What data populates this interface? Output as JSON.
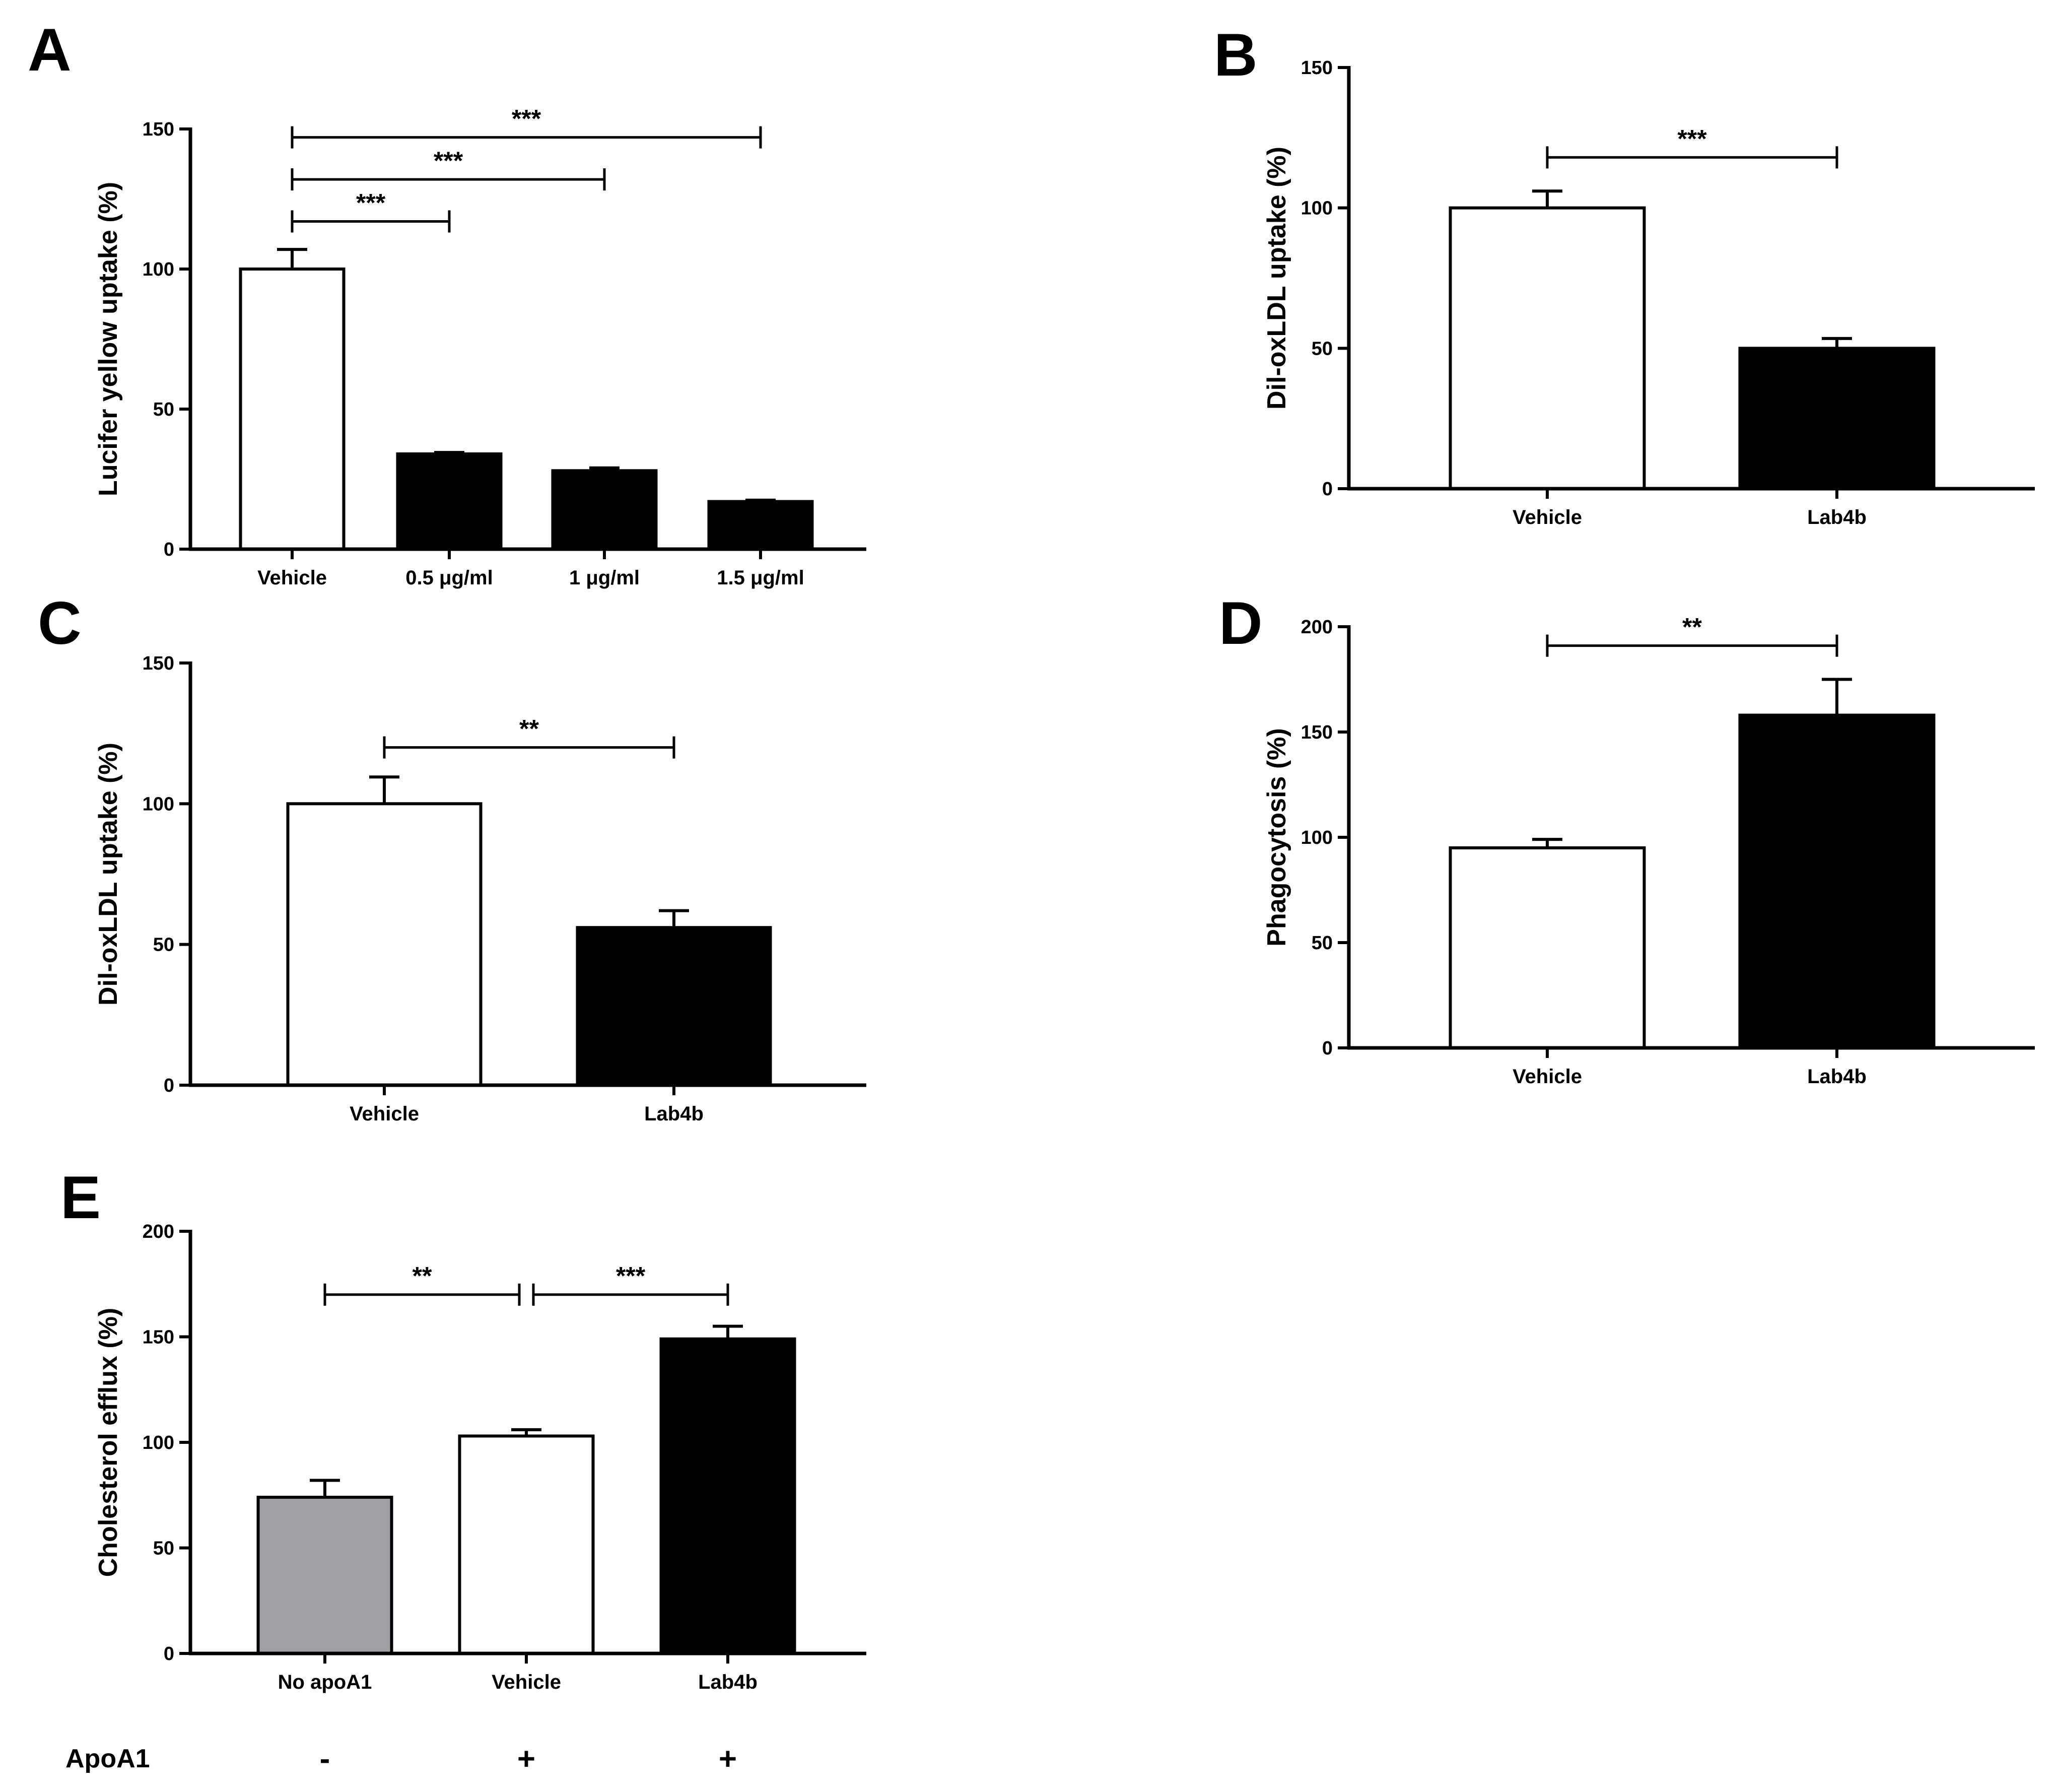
{
  "figure": {
    "colors": {
      "axis": "#000000",
      "white_bar": "#ffffff",
      "black_bar": "#000000",
      "gray_bar": "#a0a0a4"
    },
    "footer": {
      "label": "ApoA1",
      "signs": [
        "-",
        "+",
        "+"
      ]
    }
  },
  "chart_data": [
    {
      "panel": "A",
      "type": "bar",
      "ylabel": "Lucifer yellow uptake (%)",
      "xlabel": "",
      "ylim": [
        0,
        150
      ],
      "yticks": [
        0,
        50,
        100,
        150
      ],
      "categories": [
        "Vehicle",
        "0.5 μg/ml",
        "1 μg/ml",
        "1.5 μg/ml"
      ],
      "values": [
        100,
        34,
        28,
        17
      ],
      "errors": [
        7,
        0.5,
        1,
        0.5
      ],
      "fills": [
        "white",
        "black",
        "black",
        "black"
      ],
      "comparisons": [
        {
          "from": 0,
          "to": 1,
          "label": "***",
          "level": 117
        },
        {
          "from": 0,
          "to": 2,
          "label": "***",
          "level": 132
        },
        {
          "from": 0,
          "to": 3,
          "label": "***",
          "level": 147
        }
      ]
    },
    {
      "panel": "B",
      "type": "bar",
      "ylabel": "Dil-oxLDL uptake (%)",
      "xlabel": "",
      "ylim": [
        0,
        150
      ],
      "yticks": [
        0,
        50,
        100,
        150
      ],
      "categories": [
        "Vehicle",
        "Lab4b"
      ],
      "values": [
        100,
        50
      ],
      "errors": [
        6,
        3.5
      ],
      "fills": [
        "white",
        "black"
      ],
      "comparisons": [
        {
          "from": 0,
          "to": 1,
          "label": "***",
          "level": 118
        }
      ]
    },
    {
      "panel": "C",
      "type": "bar",
      "ylabel": "Dil-oxLDL uptake (%)",
      "xlabel": "",
      "ylim": [
        0,
        150
      ],
      "yticks": [
        0,
        50,
        100,
        150
      ],
      "categories": [
        "Vehicle",
        "Lab4b"
      ],
      "values": [
        100,
        56
      ],
      "errors": [
        9.5,
        6
      ],
      "fills": [
        "white",
        "black"
      ],
      "comparisons": [
        {
          "from": 0,
          "to": 1,
          "label": "**",
          "level": 120
        }
      ]
    },
    {
      "panel": "D",
      "type": "bar",
      "ylabel": "Phagocytosis (%)",
      "xlabel": "",
      "ylim": [
        0,
        200
      ],
      "yticks": [
        0,
        50,
        100,
        150,
        200
      ],
      "categories": [
        "Vehicle",
        "Lab4b"
      ],
      "values": [
        95,
        158
      ],
      "errors": [
        4,
        17
      ],
      "fills": [
        "white",
        "black"
      ],
      "comparisons": [
        {
          "from": 0,
          "to": 1,
          "label": "**",
          "level": 191
        }
      ]
    },
    {
      "panel": "E",
      "type": "bar",
      "ylabel": "Cholesterol efflux (%)",
      "xlabel": "",
      "ylim": [
        0,
        200
      ],
      "yticks": [
        0,
        50,
        100,
        150,
        200
      ],
      "categories": [
        "No apoA1",
        "Vehicle",
        "Lab4b"
      ],
      "values": [
        74,
        103,
        149
      ],
      "errors": [
        8,
        3,
        6
      ],
      "fills": [
        "gray",
        "white",
        "black"
      ],
      "comparisons": [
        {
          "from": 0,
          "to": 1,
          "label": "**",
          "level": 170
        },
        {
          "from": 1,
          "to": 2,
          "label": "***",
          "level": 170
        }
      ]
    }
  ]
}
